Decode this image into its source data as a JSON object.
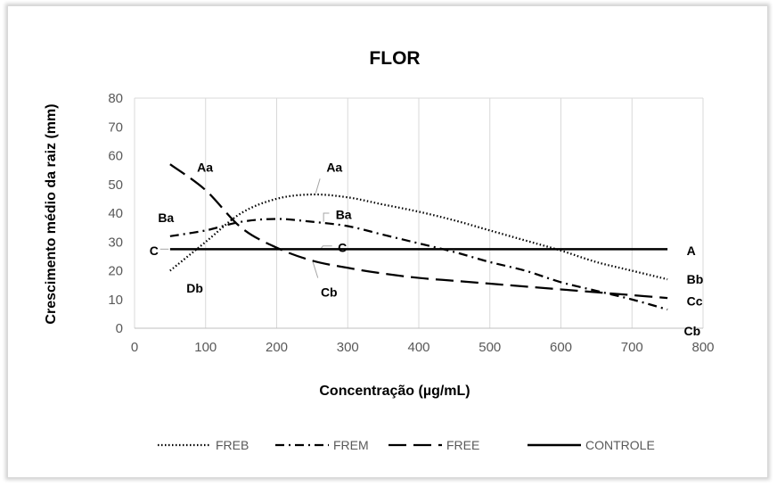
{
  "chart_data": {
    "type": "line",
    "title": "FLOR",
    "xlabel": "Concentração (µg/mL)",
    "ylabel": "Crescimento médio da raiz (mm)",
    "xlim": [
      0,
      800
    ],
    "ylim": [
      0,
      80
    ],
    "xticks": [
      0,
      100,
      200,
      300,
      400,
      500,
      600,
      700,
      800
    ],
    "yticks": [
      0,
      10,
      20,
      30,
      40,
      50,
      60,
      70,
      80
    ],
    "grid": "vertical",
    "legend_position": "bottom",
    "series": [
      {
        "name": "FREB",
        "style": "dotted",
        "color": "#000000",
        "x": [
          50,
          100,
          150,
          200,
          250,
          300,
          350,
          400,
          450,
          500,
          550,
          600,
          650,
          700,
          750
        ],
        "y": [
          20,
          30,
          40,
          45,
          46.5,
          45.5,
          43,
          40.5,
          37.5,
          34,
          30.5,
          27,
          23,
          20,
          17
        ]
      },
      {
        "name": "FREM",
        "style": "dash-dot",
        "color": "#000000",
        "x": [
          50,
          100,
          150,
          200,
          250,
          300,
          350,
          400,
          450,
          500,
          550,
          600,
          650,
          700,
          750
        ],
        "y": [
          32,
          34,
          37,
          38,
          37,
          35.5,
          32.5,
          29.5,
          26.5,
          23,
          20,
          16,
          13,
          10,
          6.5
        ]
      },
      {
        "name": "FREE",
        "style": "long-dash",
        "color": "#000000",
        "x": [
          50,
          100,
          150,
          200,
          250,
          300,
          350,
          400,
          450,
          500,
          550,
          600,
          650,
          700,
          750
        ],
        "y": [
          57,
          48,
          35,
          28,
          23.5,
          21,
          19,
          17.5,
          16.5,
          15.5,
          14.5,
          13.5,
          12.5,
          11.5,
          10.5
        ]
      },
      {
        "name": "CONTROLE",
        "style": "solid",
        "color": "#000000",
        "x": [
          50,
          750
        ],
        "y": [
          27.5,
          27.5
        ]
      }
    ],
    "annotations": [
      {
        "text": "Aa",
        "x": 88,
        "y": 56
      },
      {
        "text": "Aa",
        "x": 270,
        "y": 56
      },
      {
        "text": "Ba",
        "x": 33,
        "y": 38.5
      },
      {
        "text": "Ba",
        "x": 283,
        "y": 39.5
      },
      {
        "text": "C",
        "x": 21,
        "y": 27
      },
      {
        "text": "C",
        "x": 286,
        "y": 28
      },
      {
        "text": "A",
        "x": 777,
        "y": 27
      },
      {
        "text": "Db",
        "x": 73,
        "y": 14
      },
      {
        "text": "Cb",
        "x": 262,
        "y": 12.5
      },
      {
        "text": "Bb",
        "x": 777,
        "y": 17
      },
      {
        "text": "Cc",
        "x": 777,
        "y": 9.5
      },
      {
        "text": "Cb",
        "x": 773,
        "y": -1
      }
    ]
  }
}
